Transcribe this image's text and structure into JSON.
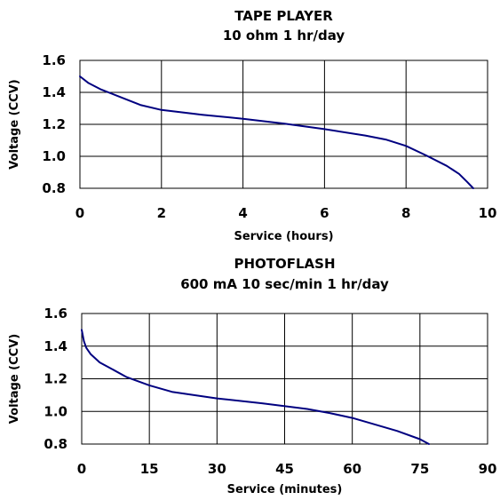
{
  "chart_data": [
    {
      "type": "line",
      "title": "TAPE PLAYER",
      "subtitle": "10 ohm 1 hr/day",
      "xlabel": "Service (hours)",
      "ylabel": "Voltage (CCV)",
      "xlim": [
        0,
        10
      ],
      "ylim": [
        0.8,
        1.6
      ],
      "xticks": [
        "0",
        "2",
        "4",
        "6",
        "8",
        "10"
      ],
      "yticks": [
        "1.6",
        "1.4",
        "1.2",
        "1.0",
        "0.8"
      ],
      "grid": true,
      "line_color": "#000080",
      "series": [
        {
          "x": [
            0,
            0.2,
            0.5,
            1.0,
            1.5,
            2.0,
            3.0,
            4.0,
            5.0,
            6.0,
            7.0,
            7.5,
            8.0,
            8.5,
            9.0,
            9.3,
            9.5,
            9.65
          ],
          "y": [
            1.5,
            1.46,
            1.42,
            1.37,
            1.32,
            1.29,
            1.26,
            1.235,
            1.205,
            1.17,
            1.13,
            1.105,
            1.065,
            1.005,
            0.94,
            0.89,
            0.84,
            0.8
          ]
        }
      ]
    },
    {
      "type": "line",
      "title": "PHOTOFLASH",
      "subtitle": "600 mA 10 sec/min 1 hr/day",
      "xlabel": "Service (minutes)",
      "ylabel": "Voltage (CCV)",
      "xlim": [
        0,
        90
      ],
      "ylim": [
        0.8,
        1.6
      ],
      "xticks": [
        "0",
        "15",
        "30",
        "45",
        "60",
        "75",
        "90"
      ],
      "yticks": [
        "1.6",
        "1.4",
        "1.2",
        "1.0",
        "0.8"
      ],
      "grid": true,
      "line_color": "#000080",
      "series": [
        {
          "x": [
            0,
            0.5,
            1,
            2,
            4,
            6,
            10,
            15,
            20,
            30,
            40,
            50,
            55,
            60,
            65,
            70,
            75,
            77
          ],
          "y": [
            1.5,
            1.43,
            1.39,
            1.35,
            1.3,
            1.27,
            1.21,
            1.16,
            1.12,
            1.08,
            1.05,
            1.015,
            0.99,
            0.96,
            0.92,
            0.88,
            0.83,
            0.8
          ]
        }
      ]
    }
  ]
}
